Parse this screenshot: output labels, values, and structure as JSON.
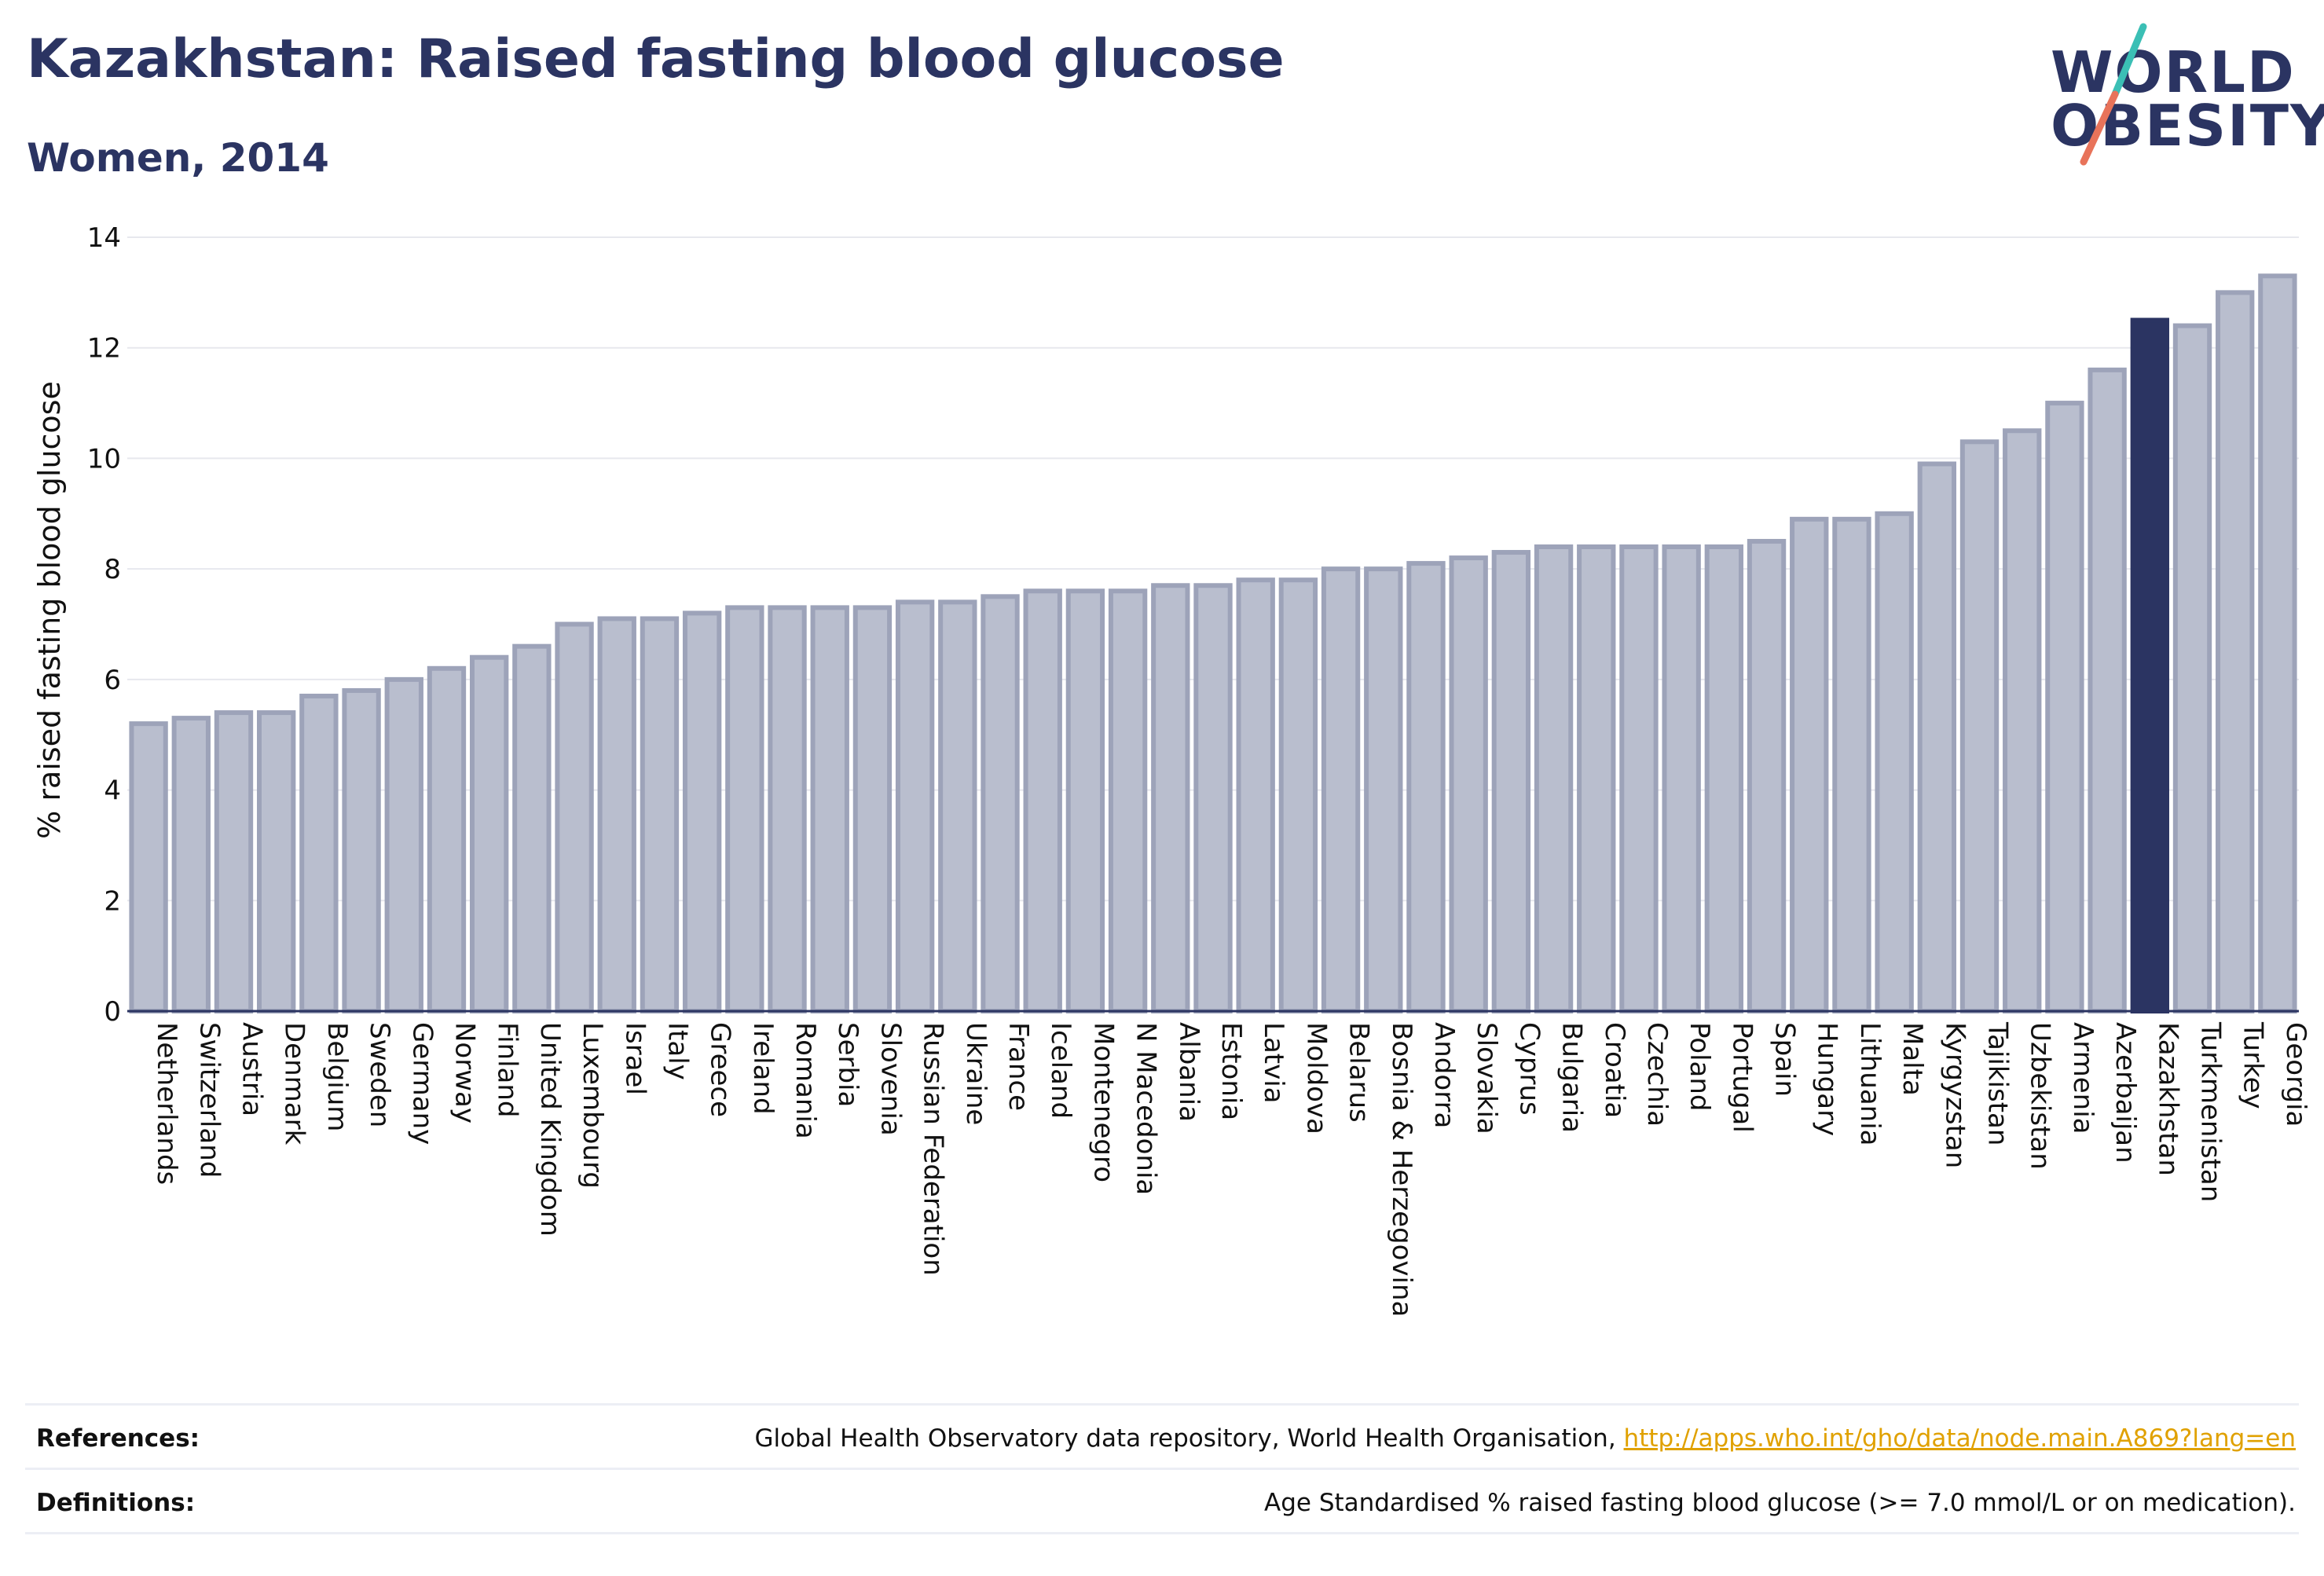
{
  "header": {
    "title": "Kazakhstan: Raised fasting blood glucose",
    "subtitle": "Women, 2014"
  },
  "logo": {
    "line1": "WORLD",
    "line2": "OBESITY",
    "colors": {
      "text": "#2b3462",
      "slash_top": "#3bbfb5",
      "slash_bottom": "#e8735a"
    }
  },
  "colors": {
    "bar_fill": "#b9bece",
    "bar_stroke": "#9da3b9",
    "highlight": "#2b3462",
    "grid": "#e7e8ee",
    "axis": "#2b3462"
  },
  "chart_data": {
    "type": "bar",
    "title": "Kazakhstan: Raised fasting blood glucose",
    "subtitle": "Women, 2014",
    "xlabel": "",
    "ylabel": "% raised fasting blood glucose",
    "ylim": [
      0,
      14
    ],
    "yticks": [
      0,
      2,
      4,
      6,
      8,
      10,
      12,
      14
    ],
    "grid": true,
    "highlight": "Kazakhstan",
    "categories": [
      "Netherlands",
      "Switzerland",
      "Austria",
      "Denmark",
      "Belgium",
      "Sweden",
      "Germany",
      "Norway",
      "Finland",
      "United Kingdom",
      "Luxembourg",
      "Israel",
      "Italy",
      "Greece",
      "Ireland",
      "Romania",
      "Serbia",
      "Slovenia",
      "Russian Federation",
      "Ukraine",
      "France",
      "Iceland",
      "Montenegro",
      "N Macedonia",
      "Albania",
      "Estonia",
      "Latvia",
      "Moldova",
      "Belarus",
      "Bosnia & Herzegovina",
      "Andorra",
      "Slovakia",
      "Cyprus",
      "Bulgaria",
      "Croatia",
      "Czechia",
      "Poland",
      "Portugal",
      "Spain",
      "Hungary",
      "Lithuania",
      "Malta",
      "Kyrgyzstan",
      "Tajikistan",
      "Uzbekistan",
      "Armenia",
      "Azerbaijan",
      "Kazakhstan",
      "Turkmenistan",
      "Turkey",
      "Georgia"
    ],
    "values": [
      5.2,
      5.3,
      5.4,
      5.4,
      5.7,
      5.8,
      6.0,
      6.2,
      6.4,
      6.6,
      7.0,
      7.1,
      7.1,
      7.2,
      7.3,
      7.3,
      7.3,
      7.3,
      7.4,
      7.4,
      7.5,
      7.6,
      7.6,
      7.6,
      7.7,
      7.7,
      7.8,
      7.8,
      8.0,
      8.0,
      8.1,
      8.2,
      8.3,
      8.4,
      8.4,
      8.4,
      8.4,
      8.4,
      8.5,
      8.9,
      8.9,
      9.0,
      9.9,
      10.3,
      10.5,
      11.0,
      11.6,
      12.5,
      12.4,
      13.0,
      13.3
    ]
  },
  "footer": {
    "references_label": "References:",
    "references_text": "Global Health Observatory data repository, World Health Organisation,",
    "references_link": "http://apps.who.int/gho/data/node.main.A869?lang=en",
    "definitions_label": "Definitions:",
    "definitions_text": "Age Standardised % raised fasting blood glucose (>= 7.0 mmol/L or on medication)."
  }
}
